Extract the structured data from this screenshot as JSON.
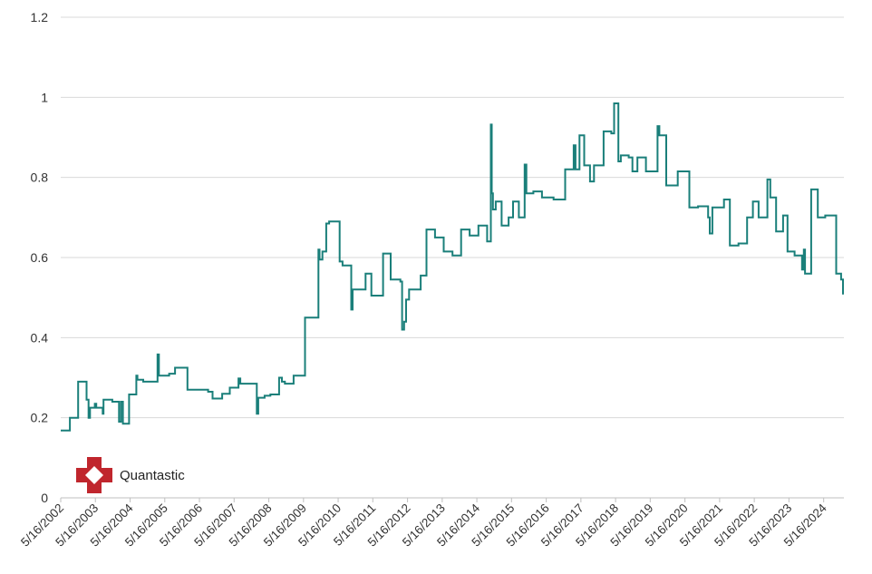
{
  "chart_data": {
    "type": "line",
    "title": "",
    "xlabel": "",
    "ylabel": "",
    "ylim": [
      0,
      1.2
    ],
    "yticks": [
      0,
      0.2,
      0.4,
      0.6,
      0.8,
      1,
      1.2
    ],
    "ytick_labels": [
      "0",
      "0.2",
      "0.4",
      "0.6",
      "0.8",
      "1",
      "1.2"
    ],
    "xlim": [
      "5/16/2002",
      "2024-12-15"
    ],
    "xtick_labels": [
      "5/16/2002",
      "5/16/2003",
      "5/16/2004",
      "5/16/2005",
      "5/16/2006",
      "5/16/2007",
      "5/16/2008",
      "5/16/2009",
      "5/16/2010",
      "5/16/2011",
      "5/16/2012",
      "5/16/2013",
      "5/16/2014",
      "5/16/2015",
      "5/16/2016",
      "5/16/2017",
      "5/16/2018",
      "5/16/2019",
      "5/16/2020",
      "5/16/2021",
      "5/16/2022",
      "5/16/2023",
      "5/16/2024"
    ],
    "grid": "horizontal",
    "line_style": "step",
    "series": [
      {
        "color": "#1a7f7a",
        "points": [
          [
            "2002-05-16",
            0.168
          ],
          [
            "2002-08-20",
            0.2
          ],
          [
            "2002-11-15",
            0.29
          ],
          [
            "2003-02-10",
            0.29
          ],
          [
            "2003-02-12",
            0.245
          ],
          [
            "2003-03-05",
            0.2
          ],
          [
            "2003-03-20",
            0.225
          ],
          [
            "2003-05-10",
            0.235
          ],
          [
            "2003-05-25",
            0.225
          ],
          [
            "2003-08-01",
            0.21
          ],
          [
            "2003-08-10",
            0.245
          ],
          [
            "2003-11-10",
            0.24
          ],
          [
            "2004-01-20",
            0.19
          ],
          [
            "2004-02-10",
            0.24
          ],
          [
            "2004-03-01",
            0.185
          ],
          [
            "2004-05-05",
            0.258
          ],
          [
            "2004-07-20",
            0.305
          ],
          [
            "2004-08-01",
            0.295
          ],
          [
            "2004-10-01",
            0.29
          ],
          [
            "2005-03-01",
            0.358
          ],
          [
            "2005-03-15",
            0.305
          ],
          [
            "2005-07-01",
            0.31
          ],
          [
            "2005-09-01",
            0.325
          ],
          [
            "2006-01-10",
            0.27
          ],
          [
            "2006-08-15",
            0.265
          ],
          [
            "2006-10-01",
            0.248
          ],
          [
            "2007-01-10",
            0.26
          ],
          [
            "2007-04-01",
            0.275
          ],
          [
            "2007-07-01",
            0.298
          ],
          [
            "2007-07-20",
            0.285
          ],
          [
            "2008-01-10",
            0.21
          ],
          [
            "2008-01-25",
            0.25
          ],
          [
            "2008-04-01",
            0.255
          ],
          [
            "2008-06-01",
            0.258
          ],
          [
            "2008-09-01",
            0.3
          ],
          [
            "2008-10-01",
            0.29
          ],
          [
            "2008-11-01",
            0.285
          ],
          [
            "2009-02-01",
            0.305
          ],
          [
            "2009-06-01",
            0.45
          ],
          [
            "2009-10-20",
            0.62
          ],
          [
            "2009-11-01",
            0.595
          ],
          [
            "2009-12-01",
            0.615
          ],
          [
            "2010-01-10",
            0.685
          ],
          [
            "2010-02-10",
            0.69
          ],
          [
            "2010-06-01",
            0.59
          ],
          [
            "2010-07-01",
            0.58
          ],
          [
            "2010-10-01",
            0.47
          ],
          [
            "2010-10-15",
            0.52
          ],
          [
            "2011-01-01",
            0.52
          ],
          [
            "2011-03-01",
            0.56
          ],
          [
            "2011-05-01",
            0.505
          ],
          [
            "2011-09-01",
            0.61
          ],
          [
            "2011-11-20",
            0.545
          ],
          [
            "2012-03-01",
            0.54
          ],
          [
            "2012-03-20",
            0.42
          ],
          [
            "2012-04-10",
            0.44
          ],
          [
            "2012-05-01",
            0.495
          ],
          [
            "2012-06-01",
            0.52
          ],
          [
            "2012-10-01",
            0.555
          ],
          [
            "2012-12-01",
            0.67
          ],
          [
            "2013-03-01",
            0.65
          ],
          [
            "2013-06-01",
            0.615
          ],
          [
            "2013-09-01",
            0.605
          ],
          [
            "2013-12-01",
            0.67
          ],
          [
            "2014-03-01",
            0.655
          ],
          [
            "2014-06-01",
            0.68
          ],
          [
            "2014-09-01",
            0.64
          ],
          [
            "2014-10-10",
            0.932
          ],
          [
            "2014-10-20",
            0.76
          ],
          [
            "2014-11-01",
            0.72
          ],
          [
            "2014-12-01",
            0.74
          ],
          [
            "2015-02-01",
            0.68
          ],
          [
            "2015-04-15",
            0.7
          ],
          [
            "2015-06-01",
            0.74
          ],
          [
            "2015-08-01",
            0.7
          ],
          [
            "2015-10-01",
            0.832
          ],
          [
            "2015-10-20",
            0.76
          ],
          [
            "2016-01-01",
            0.765
          ],
          [
            "2016-04-01",
            0.75
          ],
          [
            "2016-08-01",
            0.745
          ],
          [
            "2016-12-01",
            0.82
          ],
          [
            "2017-03-01",
            0.88
          ],
          [
            "2017-03-20",
            0.82
          ],
          [
            "2017-05-01",
            0.905
          ],
          [
            "2017-06-20",
            0.83
          ],
          [
            "2017-08-20",
            0.79
          ],
          [
            "2017-10-01",
            0.83
          ],
          [
            "2018-01-10",
            0.915
          ],
          [
            "2018-04-01",
            0.91
          ],
          [
            "2018-05-01",
            0.985
          ],
          [
            "2018-06-15",
            0.84
          ],
          [
            "2018-07-10",
            0.855
          ],
          [
            "2018-10-01",
            0.85
          ],
          [
            "2018-11-10",
            0.815
          ],
          [
            "2019-01-01",
            0.85
          ],
          [
            "2019-04-01",
            0.815
          ],
          [
            "2019-08-01",
            0.928
          ],
          [
            "2019-08-20",
            0.905
          ],
          [
            "2019-11-01",
            0.78
          ],
          [
            "2020-03-01",
            0.815
          ],
          [
            "2020-07-01",
            0.725
          ],
          [
            "2020-10-01",
            0.728
          ],
          [
            "2021-01-15",
            0.7
          ],
          [
            "2021-02-01",
            0.66
          ],
          [
            "2021-03-01",
            0.725
          ],
          [
            "2021-07-01",
            0.745
          ],
          [
            "2021-09-01",
            0.63
          ],
          [
            "2021-12-01",
            0.635
          ],
          [
            "2022-03-01",
            0.7
          ],
          [
            "2022-05-01",
            0.74
          ],
          [
            "2022-07-01",
            0.7
          ],
          [
            "2022-10-01",
            0.795
          ],
          [
            "2022-11-01",
            0.75
          ],
          [
            "2023-01-01",
            0.665
          ],
          [
            "2023-03-15",
            0.705
          ],
          [
            "2023-05-01",
            0.615
          ],
          [
            "2023-07-15",
            0.605
          ],
          [
            "2023-10-01",
            0.57
          ],
          [
            "2023-10-20",
            0.62
          ],
          [
            "2023-11-01",
            0.56
          ],
          [
            "2024-01-05",
            0.77
          ],
          [
            "2024-03-15",
            0.7
          ],
          [
            "2024-06-01",
            0.705
          ],
          [
            "2024-08-01",
            0.705
          ],
          [
            "2024-09-25",
            0.56
          ],
          [
            "2024-11-15",
            0.545
          ],
          [
            "2024-12-05",
            0.51
          ]
        ]
      }
    ]
  },
  "logo": {
    "text": "Quantastic",
    "color": "#c0262d",
    "icon": "cross-diamond-logo-icon"
  }
}
